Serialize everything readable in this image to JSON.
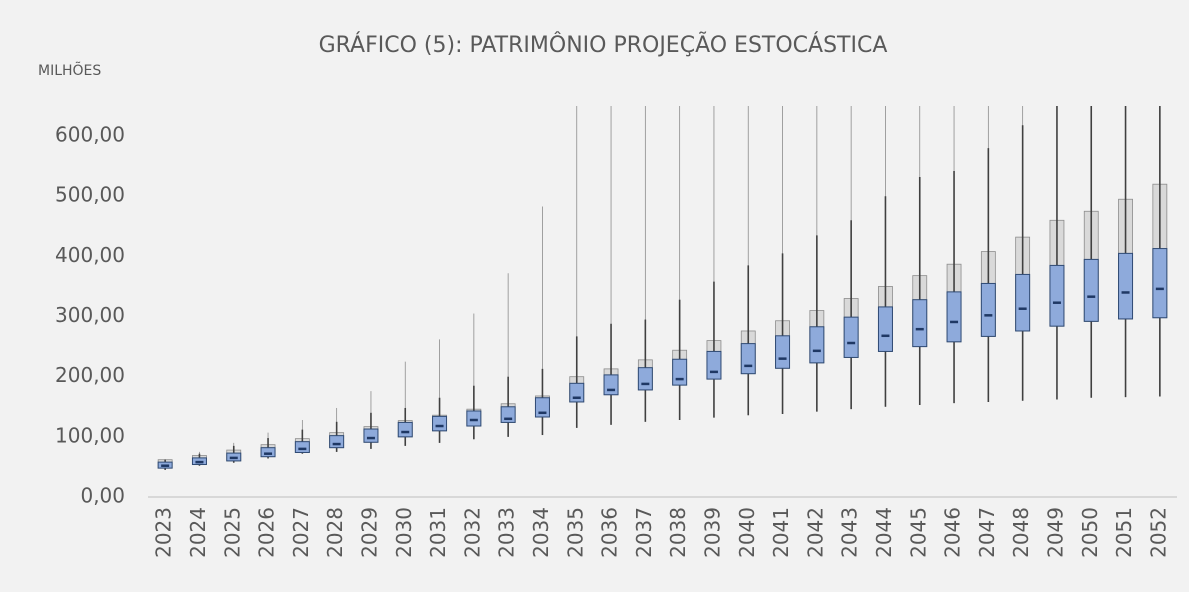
{
  "chart_data": {
    "type": "box",
    "title": "GRÁFICO (5): PATRIMÔNIO PROJEÇÃO ESTOCÁSTICA",
    "y_label": "MILHÕES",
    "categories": [
      "2023",
      "2024",
      "2025",
      "2026",
      "2027",
      "2028",
      "2029",
      "2030",
      "2031",
      "2032",
      "2033",
      "2034",
      "2035",
      "2036",
      "2037",
      "2038",
      "2039",
      "2040",
      "2041",
      "2042",
      "2043",
      "2044",
      "2045",
      "2046",
      "2047",
      "2048",
      "2049",
      "2050",
      "2051",
      "2052"
    ],
    "ylim": [
      0,
      650
    ],
    "yticks": [
      {
        "value": 0,
        "label": "0,00"
      },
      {
        "value": 100,
        "label": "100,00"
      },
      {
        "value": 200,
        "label": "200,00"
      },
      {
        "value": 300,
        "label": "300,00"
      },
      {
        "value": 400,
        "label": "400,00"
      },
      {
        "value": 500,
        "label": "500,00"
      },
      {
        "value": 600,
        "label": "600,00"
      }
    ],
    "inner": {
      "color": "#8eaadb",
      "edge": "#2f4a73",
      "whisker_low": [
        45,
        52,
        57,
        64,
        72,
        75,
        80,
        85,
        90,
        96,
        100,
        103,
        115,
        120,
        125,
        128,
        132,
        136,
        138,
        142,
        146,
        150,
        153,
        156,
        158,
        160,
        162,
        165,
        166,
        167
      ],
      "q1": [
        48,
        54,
        60,
        67,
        74,
        82,
        91,
        100,
        110,
        118,
        124,
        133,
        158,
        170,
        178,
        186,
        196,
        205,
        214,
        223,
        232,
        242,
        250,
        258,
        267,
        276,
        284,
        292,
        296,
        298
      ],
      "median": [
        52,
        58,
        65,
        72,
        80,
        88,
        98,
        108,
        118,
        128,
        130,
        140,
        165,
        178,
        188,
        196,
        208,
        218,
        230,
        243,
        256,
        268,
        279,
        291,
        302,
        313,
        323,
        333,
        340,
        346
      ],
      "q3": [
        58,
        65,
        73,
        82,
        92,
        102,
        113,
        124,
        134,
        143,
        150,
        165,
        189,
        203,
        215,
        229,
        242,
        255,
        268,
        283,
        299,
        316,
        328,
        341,
        355,
        370,
        385,
        395,
        405,
        413
      ],
      "whisker_high": [
        62,
        72,
        85,
        98,
        112,
        125,
        140,
        148,
        165,
        185,
        200,
        213,
        267,
        288,
        295,
        328,
        358,
        385,
        405,
        435,
        460,
        500,
        532,
        542,
        580,
        618,
        650,
        650,
        650,
        650
      ]
    },
    "outer": {
      "color": "#d9d9d9",
      "edge": "#8c8c8c",
      "box_high": [
        62,
        69,
        78,
        87,
        97,
        107,
        117,
        127,
        136,
        146,
        155,
        168,
        200,
        213,
        228,
        244,
        260,
        276,
        293,
        310,
        330,
        350,
        368,
        387,
        408,
        432,
        460,
        475,
        495,
        520
      ],
      "whisker_high": [
        63,
        75,
        90,
        107,
        128,
        148,
        176,
        225,
        262,
        305,
        372,
        483,
        650,
        650,
        650,
        650,
        650,
        650,
        650,
        650,
        650,
        650,
        650,
        650,
        650,
        650,
        650,
        650,
        650,
        650
      ]
    }
  }
}
